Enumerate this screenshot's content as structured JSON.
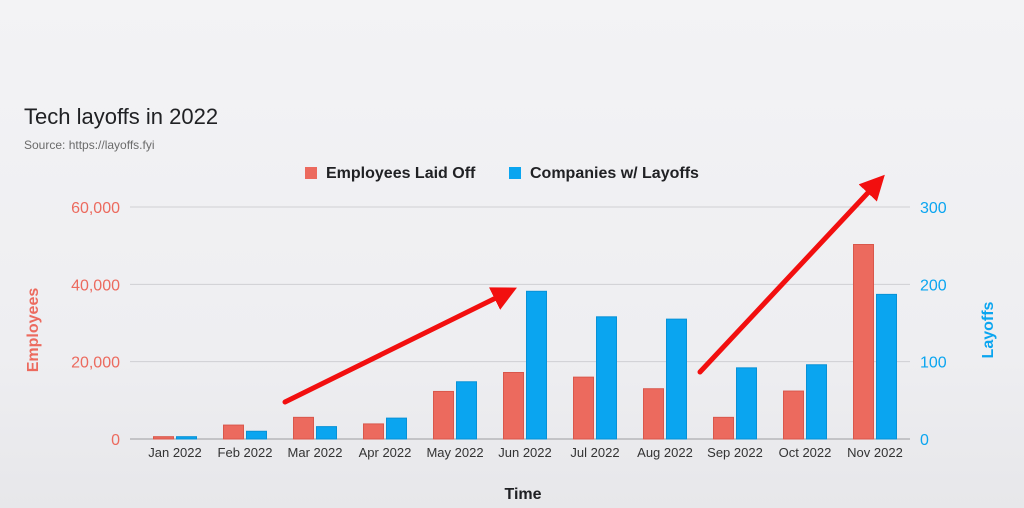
{
  "colors": {
    "employees": "#ec6a5e",
    "companies": "#0aa5f0",
    "grid": "#cfcfd3",
    "arrow": "#f20f0f"
  },
  "chart_data": {
    "type": "bar",
    "title": "Tech layoffs in 2022",
    "subtitle": "Source: https://layoffs.fyi",
    "xlabel": "Time",
    "ylabel_left": "Employees",
    "ylabel_right": "Layoffs",
    "categories": [
      "Jan 2022",
      "Feb 2022",
      "Mar 2022",
      "Apr 2022",
      "May 2022",
      "Jun 2022",
      "Jul 2022",
      "Aug 2022",
      "Sep 2022",
      "Oct 2022",
      "Nov 2022"
    ],
    "series": [
      {
        "name": "Employees Laid Off",
        "axis": "left",
        "color": "#ec6a5e",
        "values": [
          600,
          3600,
          5600,
          3900,
          12300,
          17200,
          16000,
          13000,
          5600,
          12400,
          50300
        ]
      },
      {
        "name": "Companies w/ Layoffs",
        "axis": "right",
        "color": "#0aa5f0",
        "values": [
          3,
          10,
          16,
          27,
          74,
          191,
          158,
          155,
          92,
          96,
          187
        ]
      }
    ],
    "ylim_left": [
      0,
      60000
    ],
    "ylim_right": [
      0,
      300
    ],
    "yticks_left": [
      "0",
      "20,000",
      "40,000",
      "60,000"
    ],
    "yticks_right": [
      "0",
      "100",
      "200",
      "300"
    ],
    "legend_position": "top-center",
    "grid": true
  }
}
